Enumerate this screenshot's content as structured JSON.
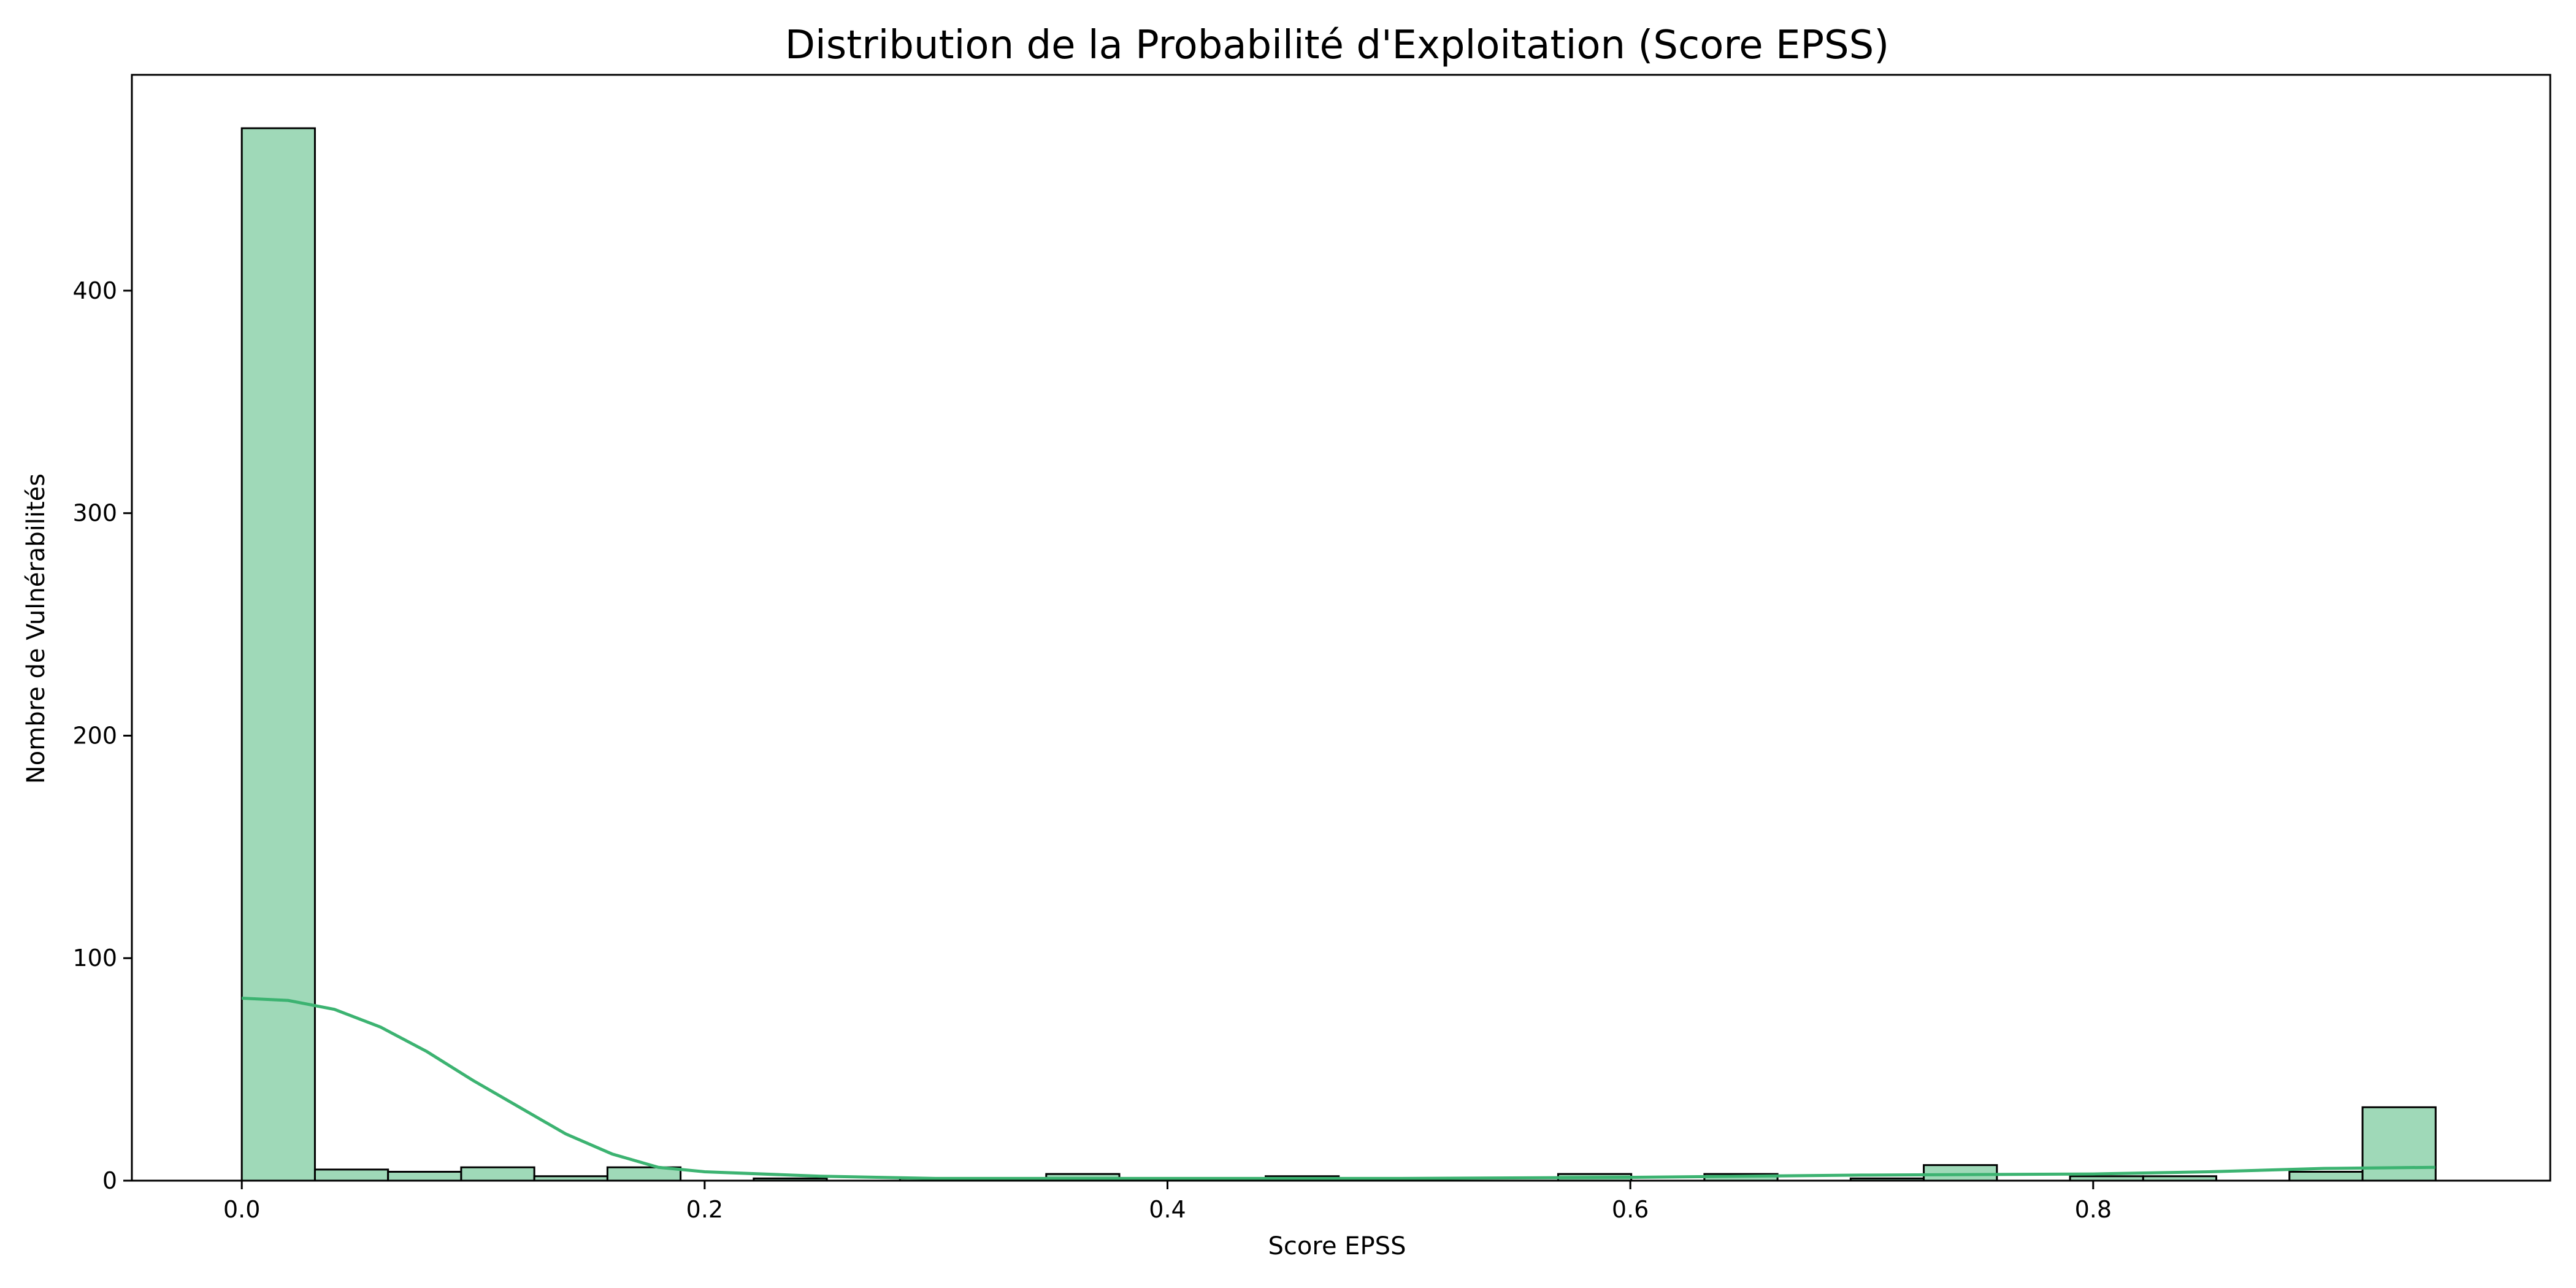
{
  "chart_data": {
    "type": "bar",
    "title": "Distribution de la Probabilité d'Exploitation (Score EPSS)",
    "xlabel": "Score EPSS",
    "ylabel": "Nombre de Vulnérabilités",
    "xlim": [
      -0.0475,
      0.9975
    ],
    "ylim": [
      0,
      497
    ],
    "xticks": [
      "0.0",
      "0.2",
      "0.4",
      "0.6",
      "0.8"
    ],
    "yticks": [
      "0",
      "100",
      "200",
      "300",
      "400"
    ],
    "grid": false,
    "legend": "none",
    "bin_width": 0.0316,
    "bins": [
      {
        "x0": 0.0,
        "count": 473
      },
      {
        "x0": 0.0316,
        "count": 5
      },
      {
        "x0": 0.0632,
        "count": 4
      },
      {
        "x0": 0.0948,
        "count": 6
      },
      {
        "x0": 0.1264,
        "count": 2
      },
      {
        "x0": 0.158,
        "count": 6
      },
      {
        "x0": 0.1896,
        "count": 0
      },
      {
        "x0": 0.2212,
        "count": 1
      },
      {
        "x0": 0.2528,
        "count": 0
      },
      {
        "x0": 0.2844,
        "count": 1
      },
      {
        "x0": 0.316,
        "count": 0
      },
      {
        "x0": 0.3476,
        "count": 3
      },
      {
        "x0": 0.3792,
        "count": 0
      },
      {
        "x0": 0.4108,
        "count": 0
      },
      {
        "x0": 0.4424,
        "count": 2
      },
      {
        "x0": 0.474,
        "count": 0
      },
      {
        "x0": 0.5056,
        "count": 0
      },
      {
        "x0": 0.5372,
        "count": 0
      },
      {
        "x0": 0.5688,
        "count": 3
      },
      {
        "x0": 0.6004,
        "count": 0
      },
      {
        "x0": 0.632,
        "count": 3
      },
      {
        "x0": 0.6636,
        "count": 0
      },
      {
        "x0": 0.6952,
        "count": 1
      },
      {
        "x0": 0.7268,
        "count": 7
      },
      {
        "x0": 0.7584,
        "count": 0
      },
      {
        "x0": 0.79,
        "count": 2
      },
      {
        "x0": 0.8216,
        "count": 2
      },
      {
        "x0": 0.8532,
        "count": 0
      },
      {
        "x0": 0.8848,
        "count": 4
      },
      {
        "x0": 0.9164,
        "count": 33
      }
    ],
    "kde": {
      "x": [
        0.0,
        0.02,
        0.04,
        0.06,
        0.08,
        0.1,
        0.12,
        0.14,
        0.16,
        0.18,
        0.2,
        0.25,
        0.3,
        0.4,
        0.5,
        0.6,
        0.7,
        0.8,
        0.85,
        0.9,
        0.9478
      ],
      "y": [
        82,
        81,
        77,
        69,
        58,
        45,
        33,
        21,
        12,
        6,
        4,
        2,
        1,
        1,
        1,
        1.5,
        2.5,
        3,
        4,
        5.5,
        6
      ]
    },
    "colors": {
      "bar_fill": "#9fd9b8",
      "bar_edge": "#000000",
      "kde_line": "#3cb371"
    }
  }
}
